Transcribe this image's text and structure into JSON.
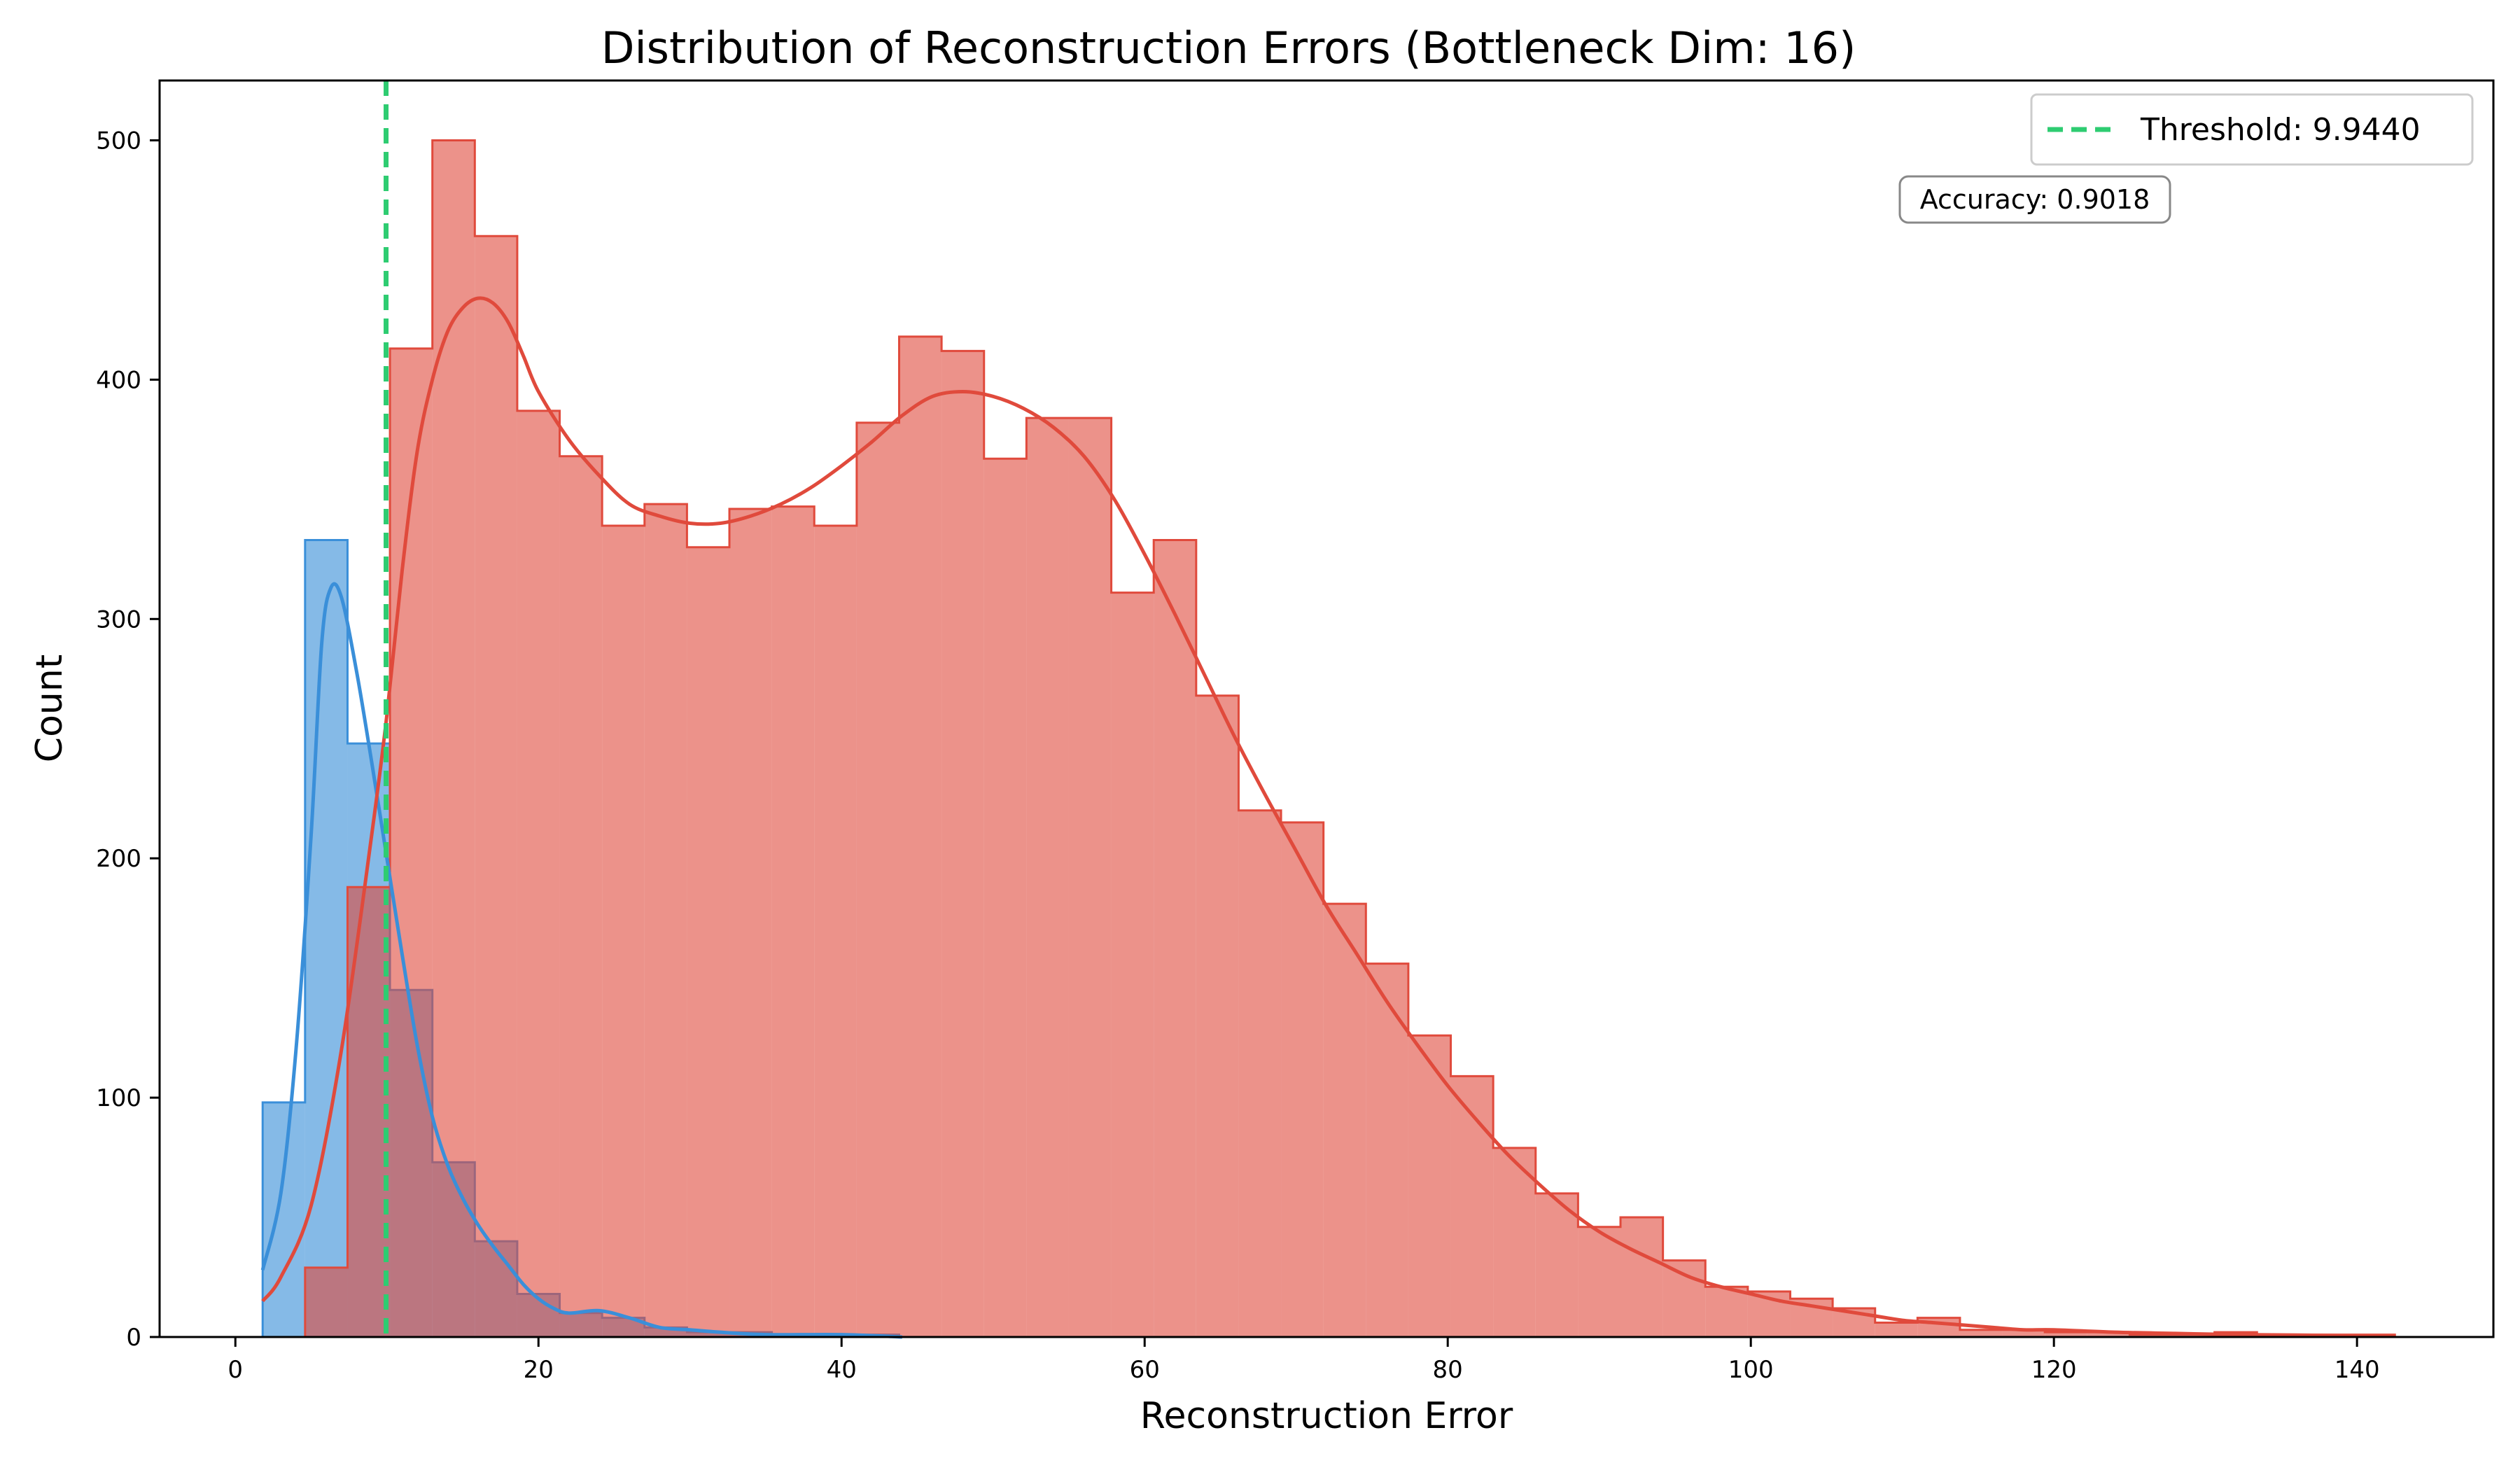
{
  "chart_data": {
    "type": "histogram",
    "title": "Distribution of Reconstruction Errors (Bottleneck Dim: 16)",
    "xlabel": "Reconstruction Error",
    "ylabel": "Count",
    "xlim": [
      -5,
      149
    ],
    "ylim": [
      0,
      525
    ],
    "xticks": [
      0,
      20,
      40,
      60,
      80,
      100,
      120,
      140
    ],
    "yticks": [
      0,
      100,
      200,
      300,
      400,
      500
    ],
    "grid": false,
    "legend_position": "top-right",
    "colors": {
      "normal": "#3a8fd9",
      "anomaly": "#e04a3c",
      "threshold": "#2ecc71"
    },
    "threshold": {
      "value": 9.944,
      "label": "Threshold: 9.9440"
    },
    "annotation": "Accuracy: 0.9018",
    "series": [
      {
        "bins": [
          [
            1.8,
            4.6,
            98
          ],
          [
            4.6,
            7.4,
            333
          ],
          [
            7.4,
            10.2,
            248
          ],
          [
            10.2,
            13.0,
            145
          ],
          [
            13.0,
            15.8,
            73
          ],
          [
            15.8,
            18.6,
            40
          ],
          [
            18.6,
            21.4,
            18
          ],
          [
            21.4,
            24.2,
            10
          ],
          [
            24.2,
            27.0,
            8
          ],
          [
            27.0,
            29.8,
            4
          ],
          [
            29.8,
            32.6,
            2
          ],
          [
            32.6,
            35.4,
            2
          ],
          [
            35.4,
            38.2,
            1
          ],
          [
            38.2,
            41.0,
            1
          ],
          [
            41.0,
            43.8,
            1
          ]
        ],
        "kde": [
          [
            1.8,
            28
          ],
          [
            3,
            60
          ],
          [
            4,
            120
          ],
          [
            5,
            210
          ],
          [
            5.7,
            290
          ],
          [
            6.3,
            313
          ],
          [
            7,
            309
          ],
          [
            8,
            278
          ],
          [
            9,
            240
          ],
          [
            10,
            200
          ],
          [
            11,
            160
          ],
          [
            12,
            122
          ],
          [
            13,
            92
          ],
          [
            14,
            72
          ],
          [
            15,
            58
          ],
          [
            16,
            47
          ],
          [
            17,
            38
          ],
          [
            18,
            30
          ],
          [
            19,
            22
          ],
          [
            20,
            16
          ],
          [
            21,
            12
          ],
          [
            22,
            10
          ],
          [
            24,
            11
          ],
          [
            26,
            8
          ],
          [
            28,
            4
          ],
          [
            30,
            3
          ],
          [
            32,
            2
          ],
          [
            35,
            1
          ],
          [
            40,
            1
          ],
          [
            44,
            0
          ]
        ]
      },
      {
        "bins": [
          [
            4.6,
            7.4,
            29
          ],
          [
            7.4,
            10.2,
            188
          ],
          [
            10.2,
            13.0,
            413
          ],
          [
            13.0,
            15.8,
            500
          ],
          [
            15.8,
            18.6,
            460
          ],
          [
            18.6,
            21.4,
            387
          ],
          [
            21.4,
            24.2,
            368
          ],
          [
            24.2,
            27.0,
            339
          ],
          [
            27.0,
            29.8,
            348
          ],
          [
            29.8,
            32.6,
            330
          ],
          [
            32.6,
            35.4,
            346
          ],
          [
            35.4,
            38.2,
            347
          ],
          [
            38.2,
            41.0,
            339
          ],
          [
            41.0,
            43.8,
            382
          ],
          [
            43.8,
            46.6,
            418
          ],
          [
            46.6,
            49.4,
            412
          ],
          [
            49.4,
            52.2,
            367
          ],
          [
            52.2,
            55.0,
            384
          ],
          [
            55.0,
            57.8,
            384
          ],
          [
            57.8,
            60.6,
            311
          ],
          [
            60.6,
            63.4,
            333
          ],
          [
            63.4,
            66.2,
            268
          ],
          [
            66.2,
            69.0,
            220
          ],
          [
            69.0,
            71.8,
            215
          ],
          [
            71.8,
            74.6,
            181
          ],
          [
            74.6,
            77.4,
            156
          ],
          [
            77.4,
            80.2,
            126
          ],
          [
            80.2,
            83.0,
            109
          ],
          [
            83.0,
            85.8,
            79
          ],
          [
            85.8,
            88.6,
            60
          ],
          [
            88.6,
            91.4,
            46
          ],
          [
            91.4,
            94.2,
            50
          ],
          [
            94.2,
            97.0,
            32
          ],
          [
            97.0,
            99.8,
            21
          ],
          [
            99.8,
            102.6,
            19
          ],
          [
            102.6,
            105.4,
            16
          ],
          [
            105.4,
            108.2,
            12
          ],
          [
            108.2,
            111.0,
            6
          ],
          [
            111.0,
            113.8,
            8
          ],
          [
            113.8,
            116.6,
            3
          ],
          [
            116.6,
            119.4,
            3
          ],
          [
            119.4,
            122.2,
            2
          ],
          [
            122.2,
            125.0,
            2
          ],
          [
            125.0,
            127.8,
            1
          ],
          [
            127.8,
            130.6,
            1
          ],
          [
            130.6,
            133.4,
            2
          ],
          [
            133.4,
            136.2,
            1
          ],
          [
            136.2,
            139.0,
            1
          ],
          [
            139.0,
            142.5,
            1
          ]
        ],
        "kde": [
          [
            1.8,
            15
          ],
          [
            3,
            25
          ],
          [
            5,
            55
          ],
          [
            7,
            120
          ],
          [
            9,
            210
          ],
          [
            10,
            260
          ],
          [
            11,
            320
          ],
          [
            12,
            370
          ],
          [
            13,
            400
          ],
          [
            14,
            420
          ],
          [
            15,
            430
          ],
          [
            16,
            434
          ],
          [
            17,
            432
          ],
          [
            18,
            424
          ],
          [
            19,
            410
          ],
          [
            20,
            395
          ],
          [
            22,
            375
          ],
          [
            24,
            360
          ],
          [
            26,
            348
          ],
          [
            28,
            343
          ],
          [
            30,
            340
          ],
          [
            32,
            340
          ],
          [
            34,
            343
          ],
          [
            36,
            348
          ],
          [
            38,
            355
          ],
          [
            40,
            364
          ],
          [
            42,
            374
          ],
          [
            44,
            385
          ],
          [
            46,
            393
          ],
          [
            48,
            395
          ],
          [
            50,
            393
          ],
          [
            52,
            388
          ],
          [
            54,
            380
          ],
          [
            56,
            368
          ],
          [
            58,
            350
          ],
          [
            60,
            327
          ],
          [
            62,
            302
          ],
          [
            64,
            276
          ],
          [
            66,
            250
          ],
          [
            68,
            226
          ],
          [
            70,
            203
          ],
          [
            72,
            180
          ],
          [
            74,
            160
          ],
          [
            76,
            140
          ],
          [
            78,
            122
          ],
          [
            80,
            105
          ],
          [
            82,
            90
          ],
          [
            84,
            76
          ],
          [
            86,
            64
          ],
          [
            88,
            53
          ],
          [
            90,
            44
          ],
          [
            92,
            37
          ],
          [
            94,
            31
          ],
          [
            96,
            25
          ],
          [
            98,
            21
          ],
          [
            100,
            18
          ],
          [
            102,
            15
          ],
          [
            104,
            13
          ],
          [
            106,
            11
          ],
          [
            108,
            9
          ],
          [
            110,
            7
          ],
          [
            112,
            6
          ],
          [
            114,
            5
          ],
          [
            116,
            4
          ],
          [
            118,
            3
          ],
          [
            120,
            3
          ],
          [
            124,
            2
          ],
          [
            128,
            1.5
          ],
          [
            132,
            1
          ],
          [
            136,
            0.8
          ],
          [
            140,
            0.5
          ],
          [
            142.5,
            0.4
          ]
        ]
      }
    ]
  }
}
